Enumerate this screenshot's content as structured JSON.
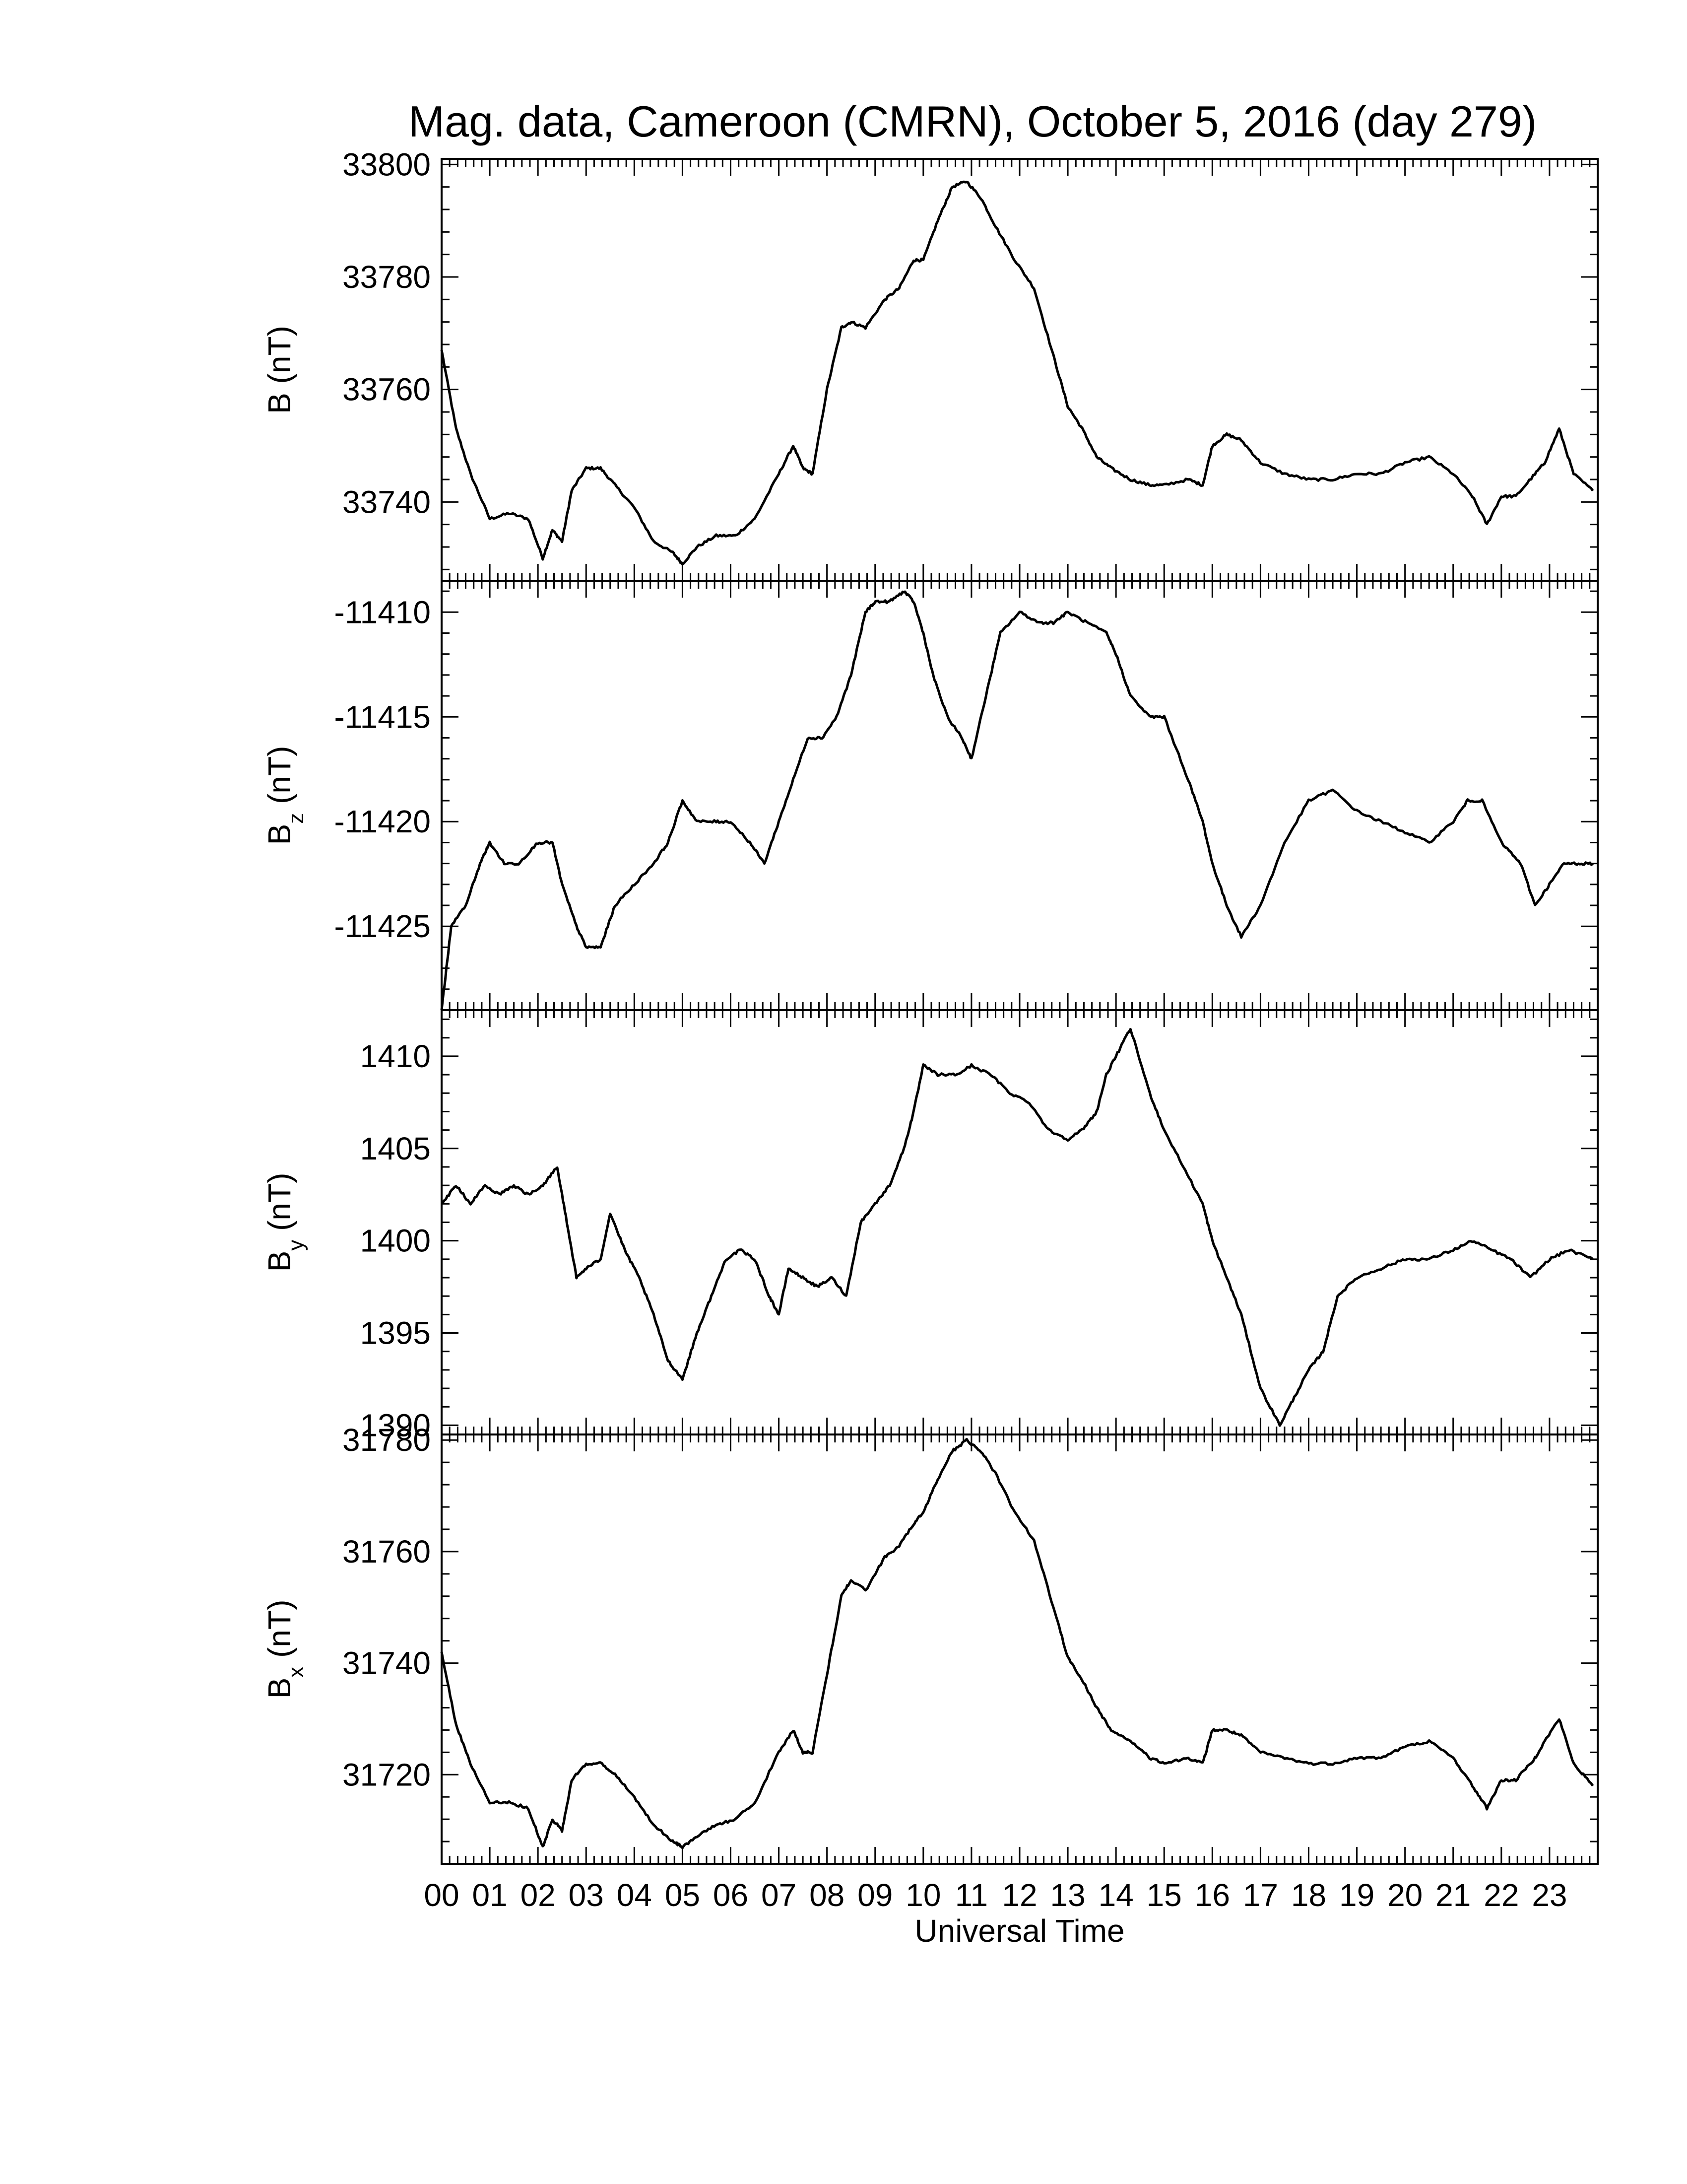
{
  "figure": {
    "title": "Mag. data, Cameroon (CMRN), October 5, 2016 (day 279)",
    "xlabel": "Universal Time",
    "line_color": "#000000",
    "background": "#ffffff"
  },
  "chart_data": [
    {
      "type": "line",
      "ylabel_main": "B",
      "ylabel_sub": "",
      "ylabel_unit": "(nT)",
      "ylim": [
        33726,
        33801
      ],
      "yticks": [
        33740,
        33760,
        33780,
        33800
      ],
      "ytick_labels": [
        "33740",
        "33760",
        "33780",
        "33800"
      ],
      "xlim": [
        0,
        24
      ],
      "x": [
        0,
        0.3,
        0.6,
        1.0,
        1.4,
        1.8,
        2.1,
        2.3,
        2.5,
        2.7,
        3.0,
        3.3,
        3.6,
        4.0,
        4.4,
        4.8,
        5.0,
        5.3,
        5.7,
        6.1,
        6.5,
        7.0,
        7.3,
        7.5,
        7.7,
        8.0,
        8.3,
        8.5,
        8.8,
        9.2,
        9.5,
        9.8,
        10.0,
        10.3,
        10.6,
        10.9,
        11.2,
        11.5,
        11.9,
        12.3,
        12.7,
        13.0,
        13.3,
        13.6,
        13.9,
        14.3,
        14.7,
        15.0,
        15.5,
        15.8,
        16.0,
        16.3,
        16.6,
        17.0,
        17.5,
        18.0,
        18.5,
        19.0,
        19.5,
        20.0,
        20.5,
        21.0,
        21.4,
        21.7,
        22.0,
        22.3,
        22.7,
        22.9,
        23.2,
        23.5,
        23.9
      ],
      "y": [
        33767,
        33753,
        33745,
        33737,
        33738,
        33737,
        33730,
        33735,
        33733,
        33742,
        33746,
        33746,
        33743,
        33739,
        33733,
        33731,
        33729,
        33732,
        33734,
        33734,
        33737,
        33745,
        33750,
        33746,
        33745,
        33760,
        33771,
        33772,
        33771,
        33776,
        33778,
        33783,
        33783,
        33790,
        33796,
        33797,
        33794,
        33789,
        33783,
        33778,
        33766,
        33757,
        33753,
        33748,
        33746,
        33744,
        33743,
        33743,
        33744,
        33743,
        33750,
        33752,
        33751,
        33747,
        33745,
        33744,
        33744,
        33745,
        33745,
        33747,
        33748,
        33745,
        33741,
        33736,
        33741,
        33741,
        33745,
        33747,
        33753,
        33745,
        33742
      ]
    },
    {
      "type": "line",
      "ylabel_main": "B",
      "ylabel_sub": "z",
      "ylabel_unit": "(nT)",
      "ylim": [
        -11429,
        -11408.5
      ],
      "yticks": [
        -11425,
        -11420,
        -11415,
        -11410
      ],
      "ytick_labels": [
        "-11425",
        "-11420",
        "-11415",
        "-11410"
      ],
      "xlim": [
        0,
        24
      ],
      "x": [
        0,
        0.2,
        0.5,
        0.8,
        1.0,
        1.3,
        1.6,
        2.0,
        2.3,
        2.5,
        2.8,
        3.0,
        3.3,
        3.6,
        4.0,
        4.4,
        4.7,
        5.0,
        5.3,
        5.7,
        6.0,
        6.4,
        6.7,
        7.0,
        7.3,
        7.6,
        7.9,
        8.2,
        8.5,
        8.8,
        9.0,
        9.3,
        9.6,
        9.8,
        10.0,
        10.2,
        10.5,
        10.8,
        11.0,
        11.3,
        11.6,
        12.0,
        12.4,
        12.7,
        13.0,
        13.4,
        13.8,
        14.0,
        14.3,
        14.7,
        15.0,
        15.5,
        15.8,
        16.0,
        16.3,
        16.6,
        17.0,
        17.5,
        18.0,
        18.5,
        19.0,
        19.5,
        20.0,
        20.5,
        21.0,
        21.3,
        21.6,
        22.0,
        22.4,
        22.7,
        23.0,
        23.3,
        23.6,
        23.9
      ],
      "y": [
        -11429,
        -11425,
        -11424,
        -11422,
        -11421,
        -11422,
        -11422,
        -11421,
        -11421,
        -11423,
        -11425,
        -11426,
        -11426,
        -11424,
        -11423,
        -11422,
        -11421,
        -11419,
        -11420,
        -11420,
        -11420,
        -11421,
        -11422,
        -11420,
        -11418,
        -11416,
        -11416,
        -11415,
        -11413,
        -11410,
        -11409.5,
        -11409.5,
        -11409,
        -11409.5,
        -11411,
        -11413,
        -11415,
        -11416,
        -11417,
        -11414,
        -11411,
        -11410,
        -11410.5,
        -11410.5,
        -11410,
        -11410.5,
        -11411,
        -11412,
        -11414,
        -11415,
        -11415,
        -11418,
        -11420,
        -11422,
        -11424,
        -11425.5,
        -11424,
        -11421,
        -11419,
        -11418.5,
        -11419.5,
        -11420,
        -11420.5,
        -11421,
        -11420,
        -11419,
        -11419,
        -11421,
        -11422,
        -11424,
        -11423,
        -11422,
        -11422,
        -11422
      ]
    },
    {
      "type": "line",
      "ylabel_main": "B",
      "ylabel_sub": "y",
      "ylabel_unit": "(nT)",
      "ylim": [
        1389.5,
        1412.5
      ],
      "yticks": [
        1390,
        1395,
        1400,
        1405,
        1410
      ],
      "ytick_labels": [
        "1390",
        "1395",
        "1400",
        "1405",
        "1410"
      ],
      "xlim": [
        0,
        24
      ],
      "x": [
        0,
        0.3,
        0.6,
        0.9,
        1.2,
        1.5,
        1.8,
        2.1,
        2.4,
        2.6,
        2.8,
        3.0,
        3.3,
        3.5,
        3.8,
        4.1,
        4.4,
        4.7,
        5.0,
        5.3,
        5.6,
        5.9,
        6.2,
        6.5,
        6.8,
        7.0,
        7.2,
        7.5,
        7.8,
        8.1,
        8.4,
        8.7,
        9.0,
        9.3,
        9.6,
        9.8,
        10.0,
        10.3,
        10.7,
        11.0,
        11.4,
        11.8,
        12.2,
        12.6,
        13.0,
        13.3,
        13.6,
        13.8,
        14.0,
        14.3,
        14.7,
        15.0,
        15.4,
        15.8,
        16.0,
        16.3,
        16.6,
        17.0,
        17.4,
        17.7,
        18.0,
        18.3,
        18.6,
        19.0,
        19.5,
        20.0,
        20.5,
        21.0,
        21.4,
        21.8,
        22.2,
        22.6,
        23.0,
        23.4,
        23.9
      ],
      "y": [
        1402,
        1403,
        1402,
        1403,
        1402.5,
        1403,
        1402.5,
        1403,
        1404,
        1401,
        1398,
        1398.5,
        1399,
        1401.5,
        1399.5,
        1398,
        1396,
        1393.5,
        1392.5,
        1395,
        1397,
        1399,
        1399.5,
        1399,
        1397,
        1396,
        1398.5,
        1398,
        1397.5,
        1398,
        1397,
        1401,
        1402,
        1403,
        1405,
        1407,
        1409.5,
        1409,
        1409,
        1409.5,
        1409,
        1408,
        1407.5,
        1406,
        1405.5,
        1406,
        1407,
        1409,
        1410,
        1411.5,
        1408,
        1406,
        1404,
        1402,
        1400,
        1398,
        1396,
        1392,
        1390,
        1391.5,
        1393,
        1394,
        1397,
        1398,
        1398.5,
        1399,
        1399,
        1399.5,
        1400,
        1399.5,
        1399,
        1398,
        1399,
        1399.5,
        1399
      ]
    },
    {
      "type": "line",
      "ylabel_main": "B",
      "ylabel_sub": "x",
      "ylabel_unit": "(nT)",
      "ylim": [
        31704,
        31781
      ],
      "yticks": [
        31720,
        31740,
        31760,
        31780
      ],
      "ytick_labels": [
        "31720",
        "31740",
        "31760",
        "31780"
      ],
      "xlim": [
        0,
        24
      ],
      "x": [
        0,
        0.3,
        0.6,
        1.0,
        1.4,
        1.8,
        2.1,
        2.3,
        2.5,
        2.7,
        3.0,
        3.3,
        3.6,
        4.0,
        4.4,
        4.8,
        5.0,
        5.3,
        5.7,
        6.1,
        6.5,
        7.0,
        7.3,
        7.5,
        7.7,
        8.0,
        8.3,
        8.5,
        8.8,
        9.2,
        9.5,
        9.8,
        10.0,
        10.3,
        10.6,
        10.9,
        11.2,
        11.5,
        11.9,
        12.3,
        12.7,
        13.0,
        13.3,
        13.6,
        13.9,
        14.3,
        14.7,
        15.0,
        15.5,
        15.8,
        16.0,
        16.3,
        16.6,
        17.0,
        17.5,
        18.0,
        18.5,
        19.0,
        19.5,
        20.0,
        20.5,
        21.0,
        21.4,
        21.7,
        22.0,
        22.3,
        22.7,
        22.9,
        23.2,
        23.5,
        23.9
      ],
      "y": [
        31742,
        31729,
        31722,
        31715,
        31715,
        31714,
        31707,
        31712,
        31710,
        31719,
        31722,
        31722,
        31720,
        31716,
        31711,
        31708,
        31707,
        31709,
        31711,
        31712,
        31715,
        31724,
        31728,
        31724,
        31724,
        31738,
        31752,
        31755,
        31753,
        31759,
        31761,
        31765,
        31767,
        31773,
        31778,
        31780,
        31778,
        31774,
        31767,
        31762,
        31750,
        31741,
        31737,
        31732,
        31728,
        31726,
        31723,
        31722,
        31723,
        31722,
        31728,
        31728,
        31727,
        31724,
        31723,
        31722,
        31722,
        31723,
        31723,
        31725,
        31726,
        31723,
        31718,
        31714,
        31719,
        31719,
        31723,
        31726,
        31730,
        31722,
        31718
      ]
    }
  ],
  "x_tick_labels": [
    "00",
    "01",
    "02",
    "03",
    "04",
    "05",
    "06",
    "07",
    "08",
    "09",
    "10",
    "11",
    "12",
    "13",
    "14",
    "15",
    "16",
    "17",
    "18",
    "19",
    "20",
    "21",
    "22",
    "23"
  ]
}
